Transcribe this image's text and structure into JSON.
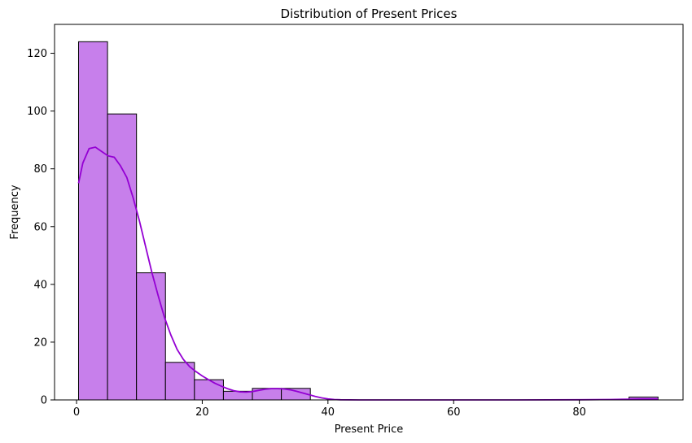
{
  "chart_data": {
    "type": "bar",
    "title": "Distribution of Present Prices",
    "xlabel": "Present Price",
    "ylabel": "Frequency",
    "xlim": [
      -3.5,
      96.5
    ],
    "ylim": [
      0,
      130
    ],
    "xticks": [
      0,
      20,
      40,
      60,
      80
    ],
    "yticks": [
      0,
      20,
      40,
      60,
      80,
      100,
      120
    ],
    "grid": false,
    "bar_color": "#c77feb",
    "edge_color": "#000000",
    "kde_color": "#9400d3",
    "bins": [
      {
        "x0": 0.32,
        "x1": 4.93,
        "count": 124
      },
      {
        "x0": 4.93,
        "x1": 9.54,
        "count": 99
      },
      {
        "x0": 9.54,
        "x1": 14.15,
        "count": 44
      },
      {
        "x0": 14.15,
        "x1": 18.76,
        "count": 13
      },
      {
        "x0": 18.76,
        "x1": 23.37,
        "count": 7
      },
      {
        "x0": 23.37,
        "x1": 27.98,
        "count": 3
      },
      {
        "x0": 27.98,
        "x1": 32.59,
        "count": 4
      },
      {
        "x0": 32.59,
        "x1": 37.2,
        "count": 4
      },
      {
        "x0": 37.2,
        "x1": 41.81,
        "count": 0
      },
      {
        "x0": 41.81,
        "x1": 46.42,
        "count": 0
      },
      {
        "x0": 46.42,
        "x1": 51.03,
        "count": 0
      },
      {
        "x0": 51.03,
        "x1": 55.64,
        "count": 0
      },
      {
        "x0": 55.64,
        "x1": 60.25,
        "count": 0
      },
      {
        "x0": 60.25,
        "x1": 64.86,
        "count": 0
      },
      {
        "x0": 64.86,
        "x1": 69.47,
        "count": 0
      },
      {
        "x0": 69.47,
        "x1": 74.08,
        "count": 0
      },
      {
        "x0": 74.08,
        "x1": 78.69,
        "count": 0
      },
      {
        "x0": 78.69,
        "x1": 83.3,
        "count": 0
      },
      {
        "x0": 83.3,
        "x1": 87.91,
        "count": 0
      },
      {
        "x0": 87.91,
        "x1": 92.52,
        "count": 1
      }
    ],
    "kde": {
      "x": [
        0.32,
        1,
        2,
        3,
        4,
        5,
        6,
        7,
        8,
        9,
        10,
        11,
        12,
        13,
        14,
        15,
        16,
        17,
        18,
        19,
        20,
        21,
        22,
        23,
        24,
        25,
        26,
        27,
        28,
        29,
        30,
        31,
        32,
        33,
        34,
        35,
        36,
        37,
        38,
        39,
        40,
        41,
        42,
        45,
        50,
        60,
        70,
        80,
        85,
        88,
        90,
        92.52
      ],
      "y": [
        75,
        82,
        87,
        87.5,
        86,
        84.5,
        84,
        81,
        77,
        70,
        62,
        53,
        44,
        36,
        28.5,
        22.5,
        17.5,
        14,
        11.5,
        9.8,
        8.3,
        7,
        5.8,
        4.8,
        3.9,
        3.2,
        2.8,
        2.7,
        2.9,
        3.3,
        3.7,
        3.9,
        3.9,
        3.8,
        3.5,
        3.0,
        2.4,
        1.8,
        1.2,
        0.7,
        0.35,
        0.15,
        0.05,
        0,
        0,
        0,
        0,
        0.05,
        0.15,
        0.25,
        0.3,
        0.3
      ]
    }
  }
}
